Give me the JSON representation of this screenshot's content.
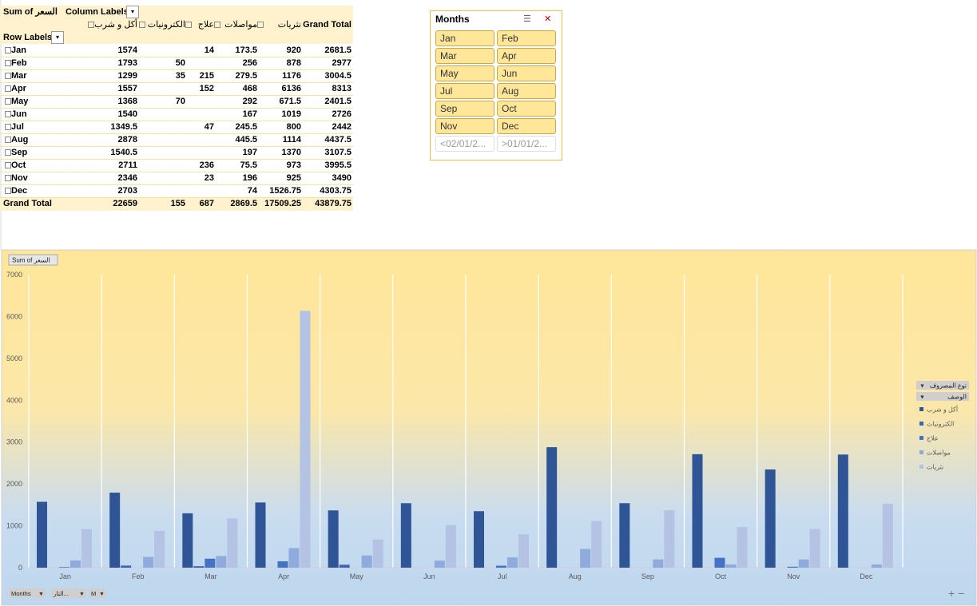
{
  "pivot": {
    "value_field": "Sum of السعر",
    "column_labels": "Column Labels",
    "row_labels": "Row Labels",
    "columns": [
      "أكل و شرب",
      "الكترونيات",
      "علاج",
      "مواصلات",
      "نثريات",
      "Grand Total"
    ],
    "rows": [
      {
        "label": "Jan",
        "cells": [
          1574,
          null,
          14,
          173.5,
          920,
          2681.5
        ]
      },
      {
        "label": "Feb",
        "cells": [
          1793,
          50,
          null,
          256,
          878,
          2977
        ]
      },
      {
        "label": "Mar",
        "cells": [
          1299,
          35,
          215,
          279.5,
          1176,
          3004.5
        ]
      },
      {
        "label": "Apr",
        "cells": [
          1557,
          null,
          152,
          468,
          6136,
          8313
        ]
      },
      {
        "label": "May",
        "cells": [
          1368,
          70,
          null,
          292,
          671.5,
          2401.5
        ]
      },
      {
        "label": "Jun",
        "cells": [
          1540,
          null,
          null,
          167,
          1019,
          2726
        ]
      },
      {
        "label": "Jul",
        "cells": [
          1349.5,
          null,
          47,
          245.5,
          800,
          2442
        ]
      },
      {
        "label": "Aug",
        "cells": [
          2878,
          null,
          null,
          445.5,
          1114,
          4437.5
        ]
      },
      {
        "label": "Sep",
        "cells": [
          1540.5,
          null,
          null,
          197,
          1370,
          3107.5
        ]
      },
      {
        "label": "Oct",
        "cells": [
          2711,
          null,
          236,
          75.5,
          973,
          3995.5
        ]
      },
      {
        "label": "Nov",
        "cells": [
          2346,
          null,
          23,
          196,
          925,
          3490
        ]
      },
      {
        "label": "Dec",
        "cells": [
          2703,
          null,
          null,
          74,
          1526.75,
          4303.75
        ]
      }
    ],
    "grand_total": {
      "label": "Grand Total",
      "cells": [
        22659,
        155,
        687,
        2869.5,
        17509.25,
        43879.75
      ]
    }
  },
  "slicer": {
    "title": "Months",
    "items": [
      "Jan",
      "Feb",
      "Mar",
      "Apr",
      "May",
      "Jun",
      "Jul",
      "Aug",
      "Sep",
      "Oct",
      "Nov",
      "Dec",
      "<02/01/2...",
      ">01/01/2..."
    ]
  },
  "chart_data": {
    "type": "bar",
    "field_button": "Sum of السعر",
    "categories": [
      "Jan",
      "Feb",
      "Mar",
      "Apr",
      "May",
      "Jun",
      "Jul",
      "Aug",
      "Sep",
      "Oct",
      "Nov",
      "Dec"
    ],
    "series": [
      {
        "name": "أكل و شرب",
        "color": "#2f5597",
        "values": [
          1574,
          1793,
          1299,
          1557,
          1368,
          1540,
          1349.5,
          2878,
          1540.5,
          2711,
          2346,
          2703
        ]
      },
      {
        "name": "الكترونيات",
        "color": "#3c63b4",
        "values": [
          null,
          50,
          35,
          null,
          70,
          null,
          null,
          null,
          null,
          null,
          null,
          null
        ]
      },
      {
        "name": "علاج",
        "color": "#4472c4",
        "values": [
          14,
          null,
          215,
          152,
          null,
          null,
          47,
          null,
          null,
          236,
          23,
          null
        ]
      },
      {
        "name": "مواصلات",
        "color": "#8faadc",
        "values": [
          173.5,
          256,
          279.5,
          468,
          292,
          167,
          245.5,
          445.5,
          197,
          75.5,
          196,
          74
        ]
      },
      {
        "name": "نثريات",
        "color": "#b4c2e4",
        "values": [
          920,
          878,
          1176,
          6136,
          671.5,
          1019,
          800,
          1114,
          1370,
          973,
          925,
          1526.75
        ]
      }
    ],
    "ylim": [
      0,
      7000
    ],
    "yticks": [
      0,
      1000,
      2000,
      3000,
      4000,
      5000,
      6000,
      7000
    ],
    "legend_fields": [
      "نوع المصروف",
      "الوصف"
    ],
    "axis_fields": [
      "Months",
      "التار...",
      "M"
    ]
  }
}
